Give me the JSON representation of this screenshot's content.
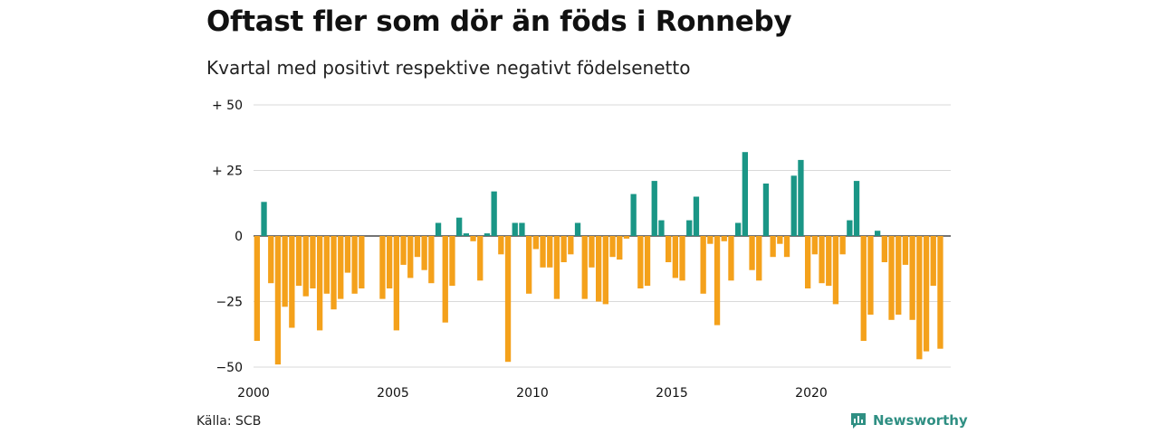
{
  "title": "Oftast fler som dör än föds i Ronneby",
  "subtitle": "Kvartal med positivt respektive negativt födelsenetto",
  "source": "Källa: SCB",
  "brand": {
    "name": "Newsworthy",
    "icon": "newsworthy-logo-icon",
    "color": "#2f8f83"
  },
  "chart_data": {
    "type": "bar",
    "title": "Oftast fler som dör än föds i Ronneby",
    "subtitle": "Kvartal med positivt respektive negativt födelsenetto",
    "xlabel": "",
    "ylabel": "",
    "ylim": [
      -50,
      50
    ],
    "yticks": [
      50,
      25,
      0,
      -25,
      -50
    ],
    "ytick_labels": [
      "+ 50",
      "+ 25",
      "0",
      "−25",
      "−50"
    ],
    "xlim": [
      2000,
      2025
    ],
    "xticks": [
      2000,
      2005,
      2010,
      2015,
      2020
    ],
    "xtick_labels": [
      "2000",
      "2005",
      "2010",
      "2015",
      "2020"
    ],
    "grid": true,
    "colors": {
      "positive": "#1a9686",
      "negative": "#f4a11b"
    },
    "start_year": 2000,
    "start_quarter": 1,
    "values": [
      -40,
      13,
      -18,
      -49,
      -27,
      -35,
      -19,
      -23,
      -20,
      -36,
      -22,
      -28,
      -24,
      -14,
      -22,
      -20,
      0,
      0,
      -24,
      -20,
      -36,
      -11,
      -16,
      -8,
      -13,
      -18,
      5,
      -33,
      -19,
      7,
      1,
      -2,
      -17,
      1,
      17,
      -7,
      -48,
      5,
      5,
      -22,
      -5,
      -12,
      -12,
      -24,
      -10,
      -7,
      5,
      -24,
      -12,
      -25,
      -26,
      -8,
      -9,
      -1,
      16,
      -20,
      -19,
      21,
      6,
      -10,
      -16,
      -17,
      6,
      15,
      -22,
      -3,
      -34,
      -2,
      -17,
      5,
      32,
      -13,
      -17,
      20,
      -8,
      -3,
      -8,
      23,
      29,
      -20,
      -7,
      -18,
      -19,
      -26,
      -7,
      6,
      21,
      -40,
      -30,
      2,
      -10,
      -32,
      -30,
      -11,
      -32,
      -47,
      -44,
      -19,
      -43
    ]
  }
}
